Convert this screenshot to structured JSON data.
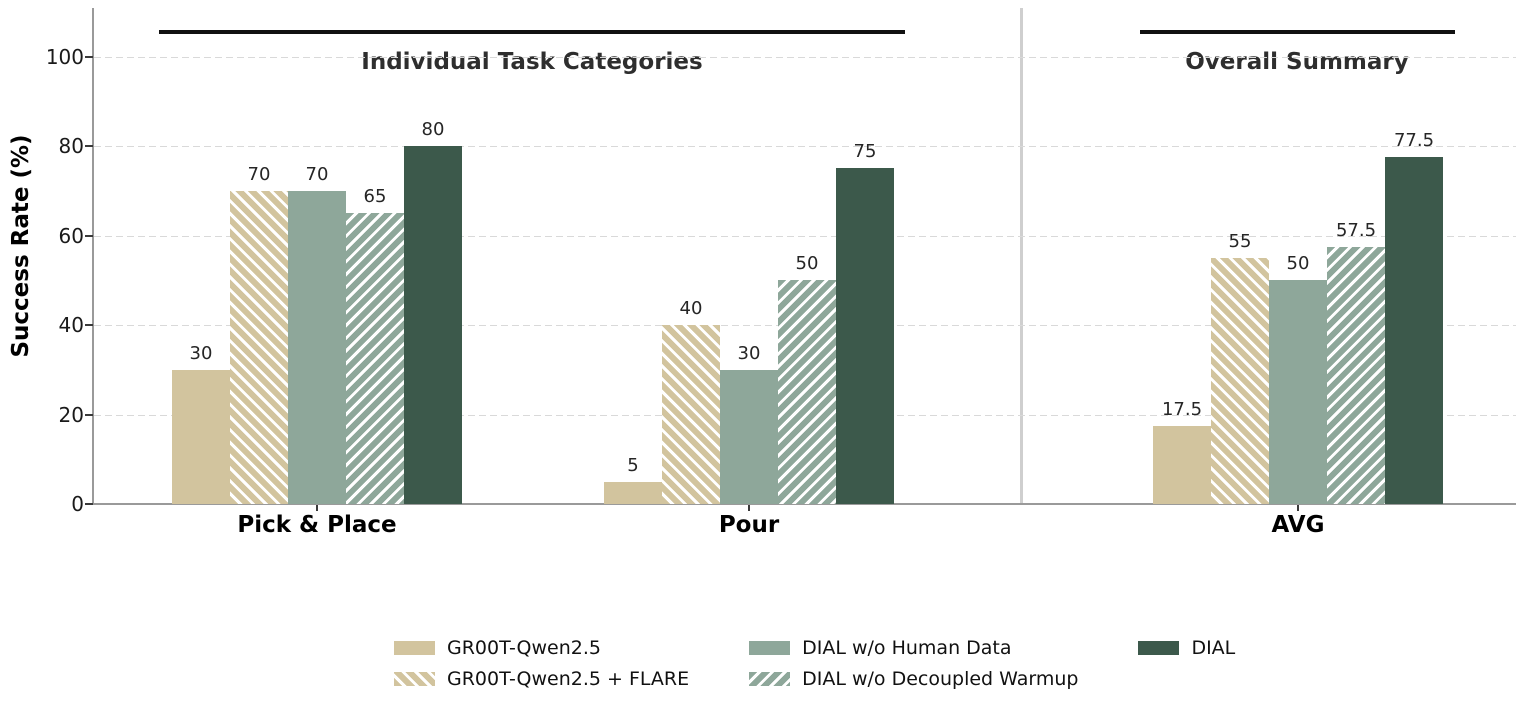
{
  "chart_data": {
    "type": "bar",
    "ylabel": "Success Rate (%)",
    "ylim": [
      0,
      100
    ],
    "yticks": [
      0,
      20,
      40,
      60,
      80,
      100
    ],
    "grid": "horizontal dashed",
    "legend_position": "bottom",
    "panels": [
      {
        "title": "Individual Task Categories",
        "categories": [
          "Pick & Place",
          "Pour"
        ]
      },
      {
        "title": "Overall Summary",
        "categories": [
          "AVG"
        ]
      }
    ],
    "categories": [
      "Pick & Place",
      "Pour",
      "AVG"
    ],
    "series": [
      {
        "name": "GR00T-Qwen2.5",
        "color": "#d2c49e",
        "hatch": "none",
        "values": [
          30,
          5,
          17.5
        ]
      },
      {
        "name": "GR00T-Qwen2.5 + FLARE",
        "color": "#d2c49e",
        "hatch": "\\",
        "values": [
          70,
          40,
          55
        ]
      },
      {
        "name": "DIAL w/o Human Data",
        "color": "#8ea79a",
        "hatch": "none",
        "values": [
          70,
          30,
          50
        ]
      },
      {
        "name": "DIAL w/o Decoupled Warmup",
        "color": "#8ea79a",
        "hatch": "/",
        "values": [
          65,
          50,
          57.5
        ]
      },
      {
        "name": "DIAL",
        "color": "#3c594b",
        "hatch": "none",
        "values": [
          80,
          75,
          77.5
        ]
      }
    ],
    "colors": {
      "tan": "#d2c49e",
      "sage": "#8ea79a",
      "dark_green": "#3c594b",
      "hatch_line": "#ffffff",
      "gridline": "#d9d9d9",
      "spine": "#9a9a9a",
      "panel_rule": "#111111"
    }
  }
}
